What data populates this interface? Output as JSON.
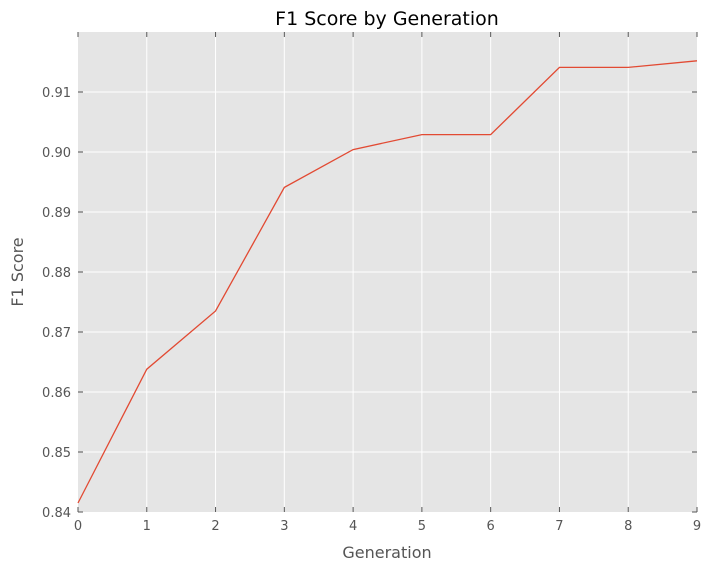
{
  "chart_data": {
    "type": "line",
    "title": "F1 Score by Generation",
    "xlabel": "Generation",
    "ylabel": "F1 Score",
    "x": [
      0,
      1,
      2,
      3,
      4,
      5,
      6,
      7,
      8,
      9
    ],
    "series": [
      {
        "values": [
          0.8415,
          0.8638,
          0.8735,
          0.8941,
          0.9004,
          0.9029,
          0.9029,
          0.9141,
          0.9141,
          0.9152
        ],
        "color": "#e24a33"
      }
    ],
    "xlim": [
      0,
      9
    ],
    "ylim": [
      0.84,
      0.92
    ],
    "xticks": [
      "0",
      "1",
      "2",
      "3",
      "4",
      "5",
      "6",
      "7",
      "8",
      "9"
    ],
    "yticks": [
      "0.84",
      "0.85",
      "0.86",
      "0.87",
      "0.88",
      "0.89",
      "0.90",
      "0.91"
    ],
    "grid": true,
    "style": {
      "plot_background": "#e5e5e5",
      "grid_color": "#ffffff"
    }
  }
}
